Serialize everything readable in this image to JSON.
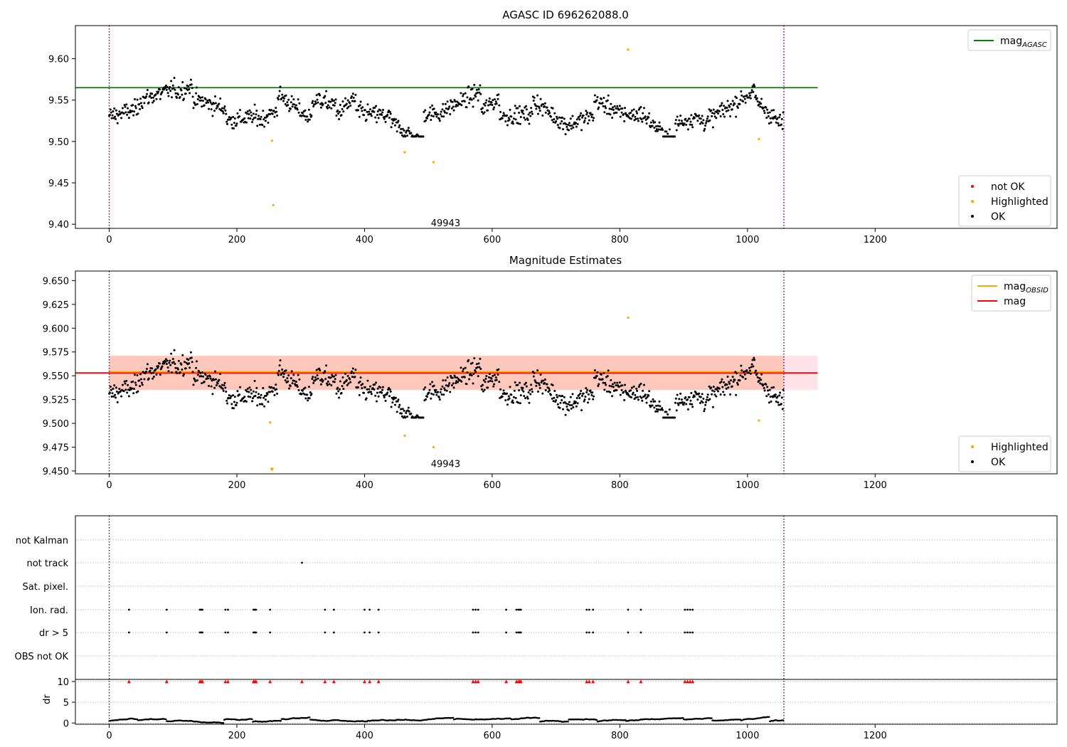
{
  "chart_data": [
    {
      "type": "scatter",
      "title": "AGASC ID 696262088.0",
      "xlim": [
        -53,
        1485
      ],
      "ylim": [
        9.395,
        9.64
      ],
      "xticks": [
        0,
        200,
        400,
        600,
        800,
        1000,
        1200
      ],
      "yticks": [
        9.4,
        9.45,
        9.5,
        9.55,
        9.6
      ],
      "annotation": {
        "text": "49943",
        "x": 527,
        "y": 9.402
      },
      "vlines": [
        0,
        1057
      ],
      "mag_agasc": 9.565,
      "legend_upper": [
        {
          "label": "mag",
          "sub": "AGASC",
          "color": "#008000"
        }
      ],
      "legend_lower": [
        {
          "label": "not OK",
          "color": "#ff0000"
        },
        {
          "label": "Highlighted",
          "color": "#ffa500"
        },
        {
          "label": "OK",
          "color": "#000000"
        }
      ],
      "highlighted": [
        [
          255,
          9.501
        ],
        [
          257,
          9.423
        ],
        [
          463,
          9.487
        ],
        [
          508,
          9.475
        ],
        [
          813,
          9.611
        ],
        [
          1018,
          9.503
        ]
      ]
    },
    {
      "type": "scatter",
      "title": "Magnitude Estimates",
      "xlim": [
        -53,
        1485
      ],
      "ylim": [
        9.447,
        9.66
      ],
      "xticks": [
        0,
        200,
        400,
        600,
        800,
        1000,
        1200
      ],
      "yticks": [
        9.45,
        9.475,
        9.5,
        9.525,
        9.55,
        9.575,
        9.6,
        9.625,
        9.65
      ],
      "annotation": {
        "text": "49943",
        "x": 527,
        "y": 9.458
      },
      "vlines": [
        0,
        1057
      ],
      "mag": 9.553,
      "mag_obsid": 9.553,
      "band_mag": [
        9.535,
        9.571
      ],
      "band_obsid": [
        9.535,
        9.571
      ],
      "legend_upper": [
        {
          "label": "mag",
          "sub": "OBSID",
          "color": "#ffa500"
        },
        {
          "label": "mag",
          "sub": "",
          "color": "#ff0000"
        }
      ],
      "legend_lower": [
        {
          "label": "Highlighted",
          "color": "#ffa500"
        },
        {
          "label": "OK",
          "color": "#000000"
        }
      ],
      "highlighted": [
        [
          252,
          9.501
        ],
        [
          463,
          9.487
        ],
        [
          508,
          9.475
        ],
        [
          813,
          9.611
        ],
        [
          1018,
          9.503
        ]
      ],
      "offscale_marker": {
        "x": 255,
        "y": 9.451
      }
    },
    {
      "type": "scatter",
      "title": "",
      "xlim": [
        -53,
        1485
      ],
      "xticks": [
        0,
        200,
        400,
        600,
        800,
        1000,
        1200
      ],
      "vlines": [
        0,
        1057
      ],
      "flag_categories": [
        "not Kalman",
        "not track",
        "Sat. pixel.",
        "Ion. rad.",
        "dr > 5",
        "OBS not OK"
      ],
      "flag_points": {
        "not track": [
          302
        ],
        "Ion. rad.": [
          31,
          90,
          142,
          144,
          146,
          182,
          186,
          226,
          228,
          230,
          252,
          338,
          352,
          400,
          408,
          422,
          570,
          574,
          578,
          622,
          638,
          641,
          643,
          645,
          748,
          752,
          758,
          813,
          833,
          902,
          906,
          910,
          914
        ],
        "dr > 5": [
          31,
          90,
          142,
          144,
          146,
          182,
          186,
          226,
          228,
          230,
          252,
          338,
          352,
          400,
          408,
          422,
          570,
          574,
          578,
          622,
          638,
          641,
          643,
          645,
          748,
          752,
          758,
          813,
          833,
          902,
          906,
          910,
          914
        ]
      },
      "dr_ylabel": "dr",
      "dr_yticks": [
        0,
        5,
        10
      ],
      "dr_ylim": [
        -0.3,
        10.5
      ],
      "dr_markers": [
        31,
        90,
        142,
        144,
        146,
        182,
        186,
        226,
        228,
        230,
        252,
        302,
        338,
        352,
        400,
        408,
        422,
        570,
        574,
        578,
        622,
        638,
        641,
        643,
        645,
        748,
        752,
        758,
        813,
        833,
        902,
        906,
        910,
        914
      ],
      "dr_marker_value": 10
    }
  ]
}
